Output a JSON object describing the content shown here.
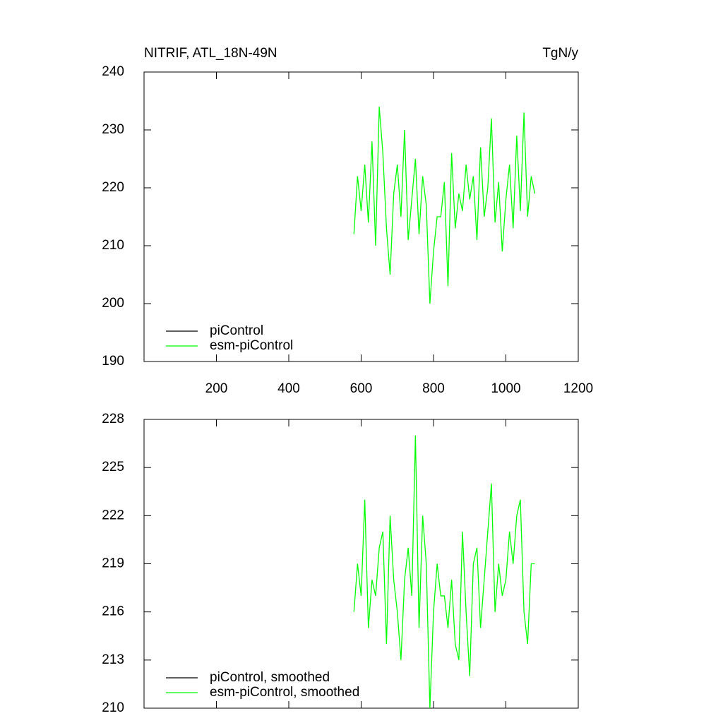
{
  "chart_data": [
    {
      "type": "line",
      "title": "NITRIF, ATL_18N-49N",
      "units": "TgN/y",
      "x": [
        580,
        590,
        600,
        610,
        620,
        630,
        640,
        650,
        660,
        670,
        680,
        690,
        700,
        710,
        720,
        730,
        740,
        750,
        760,
        770,
        780,
        790,
        800,
        810,
        820,
        830,
        840,
        850,
        860,
        870,
        880,
        890,
        900,
        910,
        920,
        930,
        940,
        950,
        960,
        970,
        980,
        990,
        1000,
        1010,
        1020,
        1030,
        1040,
        1050,
        1060,
        1070,
        1080
      ],
      "series": [
        {
          "name": "piControl",
          "color": "#000000",
          "values": [
            null,
            null,
            null,
            null,
            null,
            null,
            null,
            null,
            null,
            null,
            null,
            null,
            null,
            null,
            null,
            null,
            null,
            null,
            null,
            null,
            null,
            null,
            null,
            null,
            null,
            null,
            null,
            null,
            null,
            null,
            null,
            null,
            null,
            null,
            null,
            null,
            null,
            null,
            null,
            null,
            null,
            null,
            null,
            null,
            null,
            null,
            null,
            null,
            null,
            null,
            null
          ]
        },
        {
          "name": "esm-piControl",
          "color": "#00ff00",
          "values": [
            212,
            222,
            216,
            224,
            214,
            228,
            210,
            234,
            226,
            213,
            205,
            219,
            224,
            215,
            230,
            211,
            218,
            225,
            212,
            222,
            217,
            200,
            209,
            215,
            215,
            221,
            203,
            226,
            213,
            219,
            216,
            224,
            218,
            222,
            211,
            227,
            215,
            220,
            232,
            214,
            221,
            209,
            218,
            224,
            213,
            229,
            216,
            233,
            215,
            222,
            219
          ]
        }
      ],
      "xlim": [
        0,
        1200
      ],
      "xticks": [
        200,
        400,
        600,
        800,
        1000,
        1200
      ],
      "xtick_labels": true,
      "ylim": [
        190,
        240
      ],
      "yticks": [
        190,
        200,
        210,
        220,
        230,
        240
      ],
      "legend": "lower left"
    },
    {
      "type": "line",
      "x": [
        580,
        590,
        600,
        610,
        620,
        630,
        640,
        650,
        660,
        670,
        680,
        690,
        700,
        710,
        720,
        730,
        740,
        750,
        760,
        770,
        780,
        790,
        800,
        810,
        820,
        830,
        840,
        850,
        860,
        870,
        880,
        890,
        900,
        910,
        920,
        930,
        940,
        950,
        960,
        970,
        980,
        990,
        1000,
        1010,
        1020,
        1030,
        1040,
        1050,
        1060,
        1070,
        1080
      ],
      "series": [
        {
          "name": "piControl, smoothed",
          "color": "#000000",
          "values": [
            null,
            null,
            null,
            null,
            null,
            null,
            null,
            null,
            null,
            null,
            null,
            null,
            null,
            null,
            null,
            null,
            null,
            null,
            null,
            null,
            null,
            null,
            null,
            null,
            null,
            null,
            null,
            null,
            null,
            null,
            null,
            null,
            null,
            null,
            null,
            null,
            null,
            null,
            null,
            null,
            null,
            null,
            null,
            null,
            null,
            null,
            null,
            null,
            null,
            null,
            null
          ]
        },
        {
          "name": "esm-piControl, smoothed",
          "color": "#00ff00",
          "values": [
            216,
            219,
            217,
            223,
            215,
            218,
            217,
            220,
            221,
            214,
            222,
            218,
            216,
            213,
            218,
            220,
            217,
            227,
            215,
            222,
            219,
            210,
            216,
            219,
            217,
            217,
            215,
            218,
            214,
            213,
            221,
            216,
            212,
            219,
            220,
            215,
            218,
            221,
            224,
            216,
            219,
            217,
            218,
            221,
            219,
            222,
            223,
            216,
            214,
            219,
            219
          ]
        }
      ],
      "xlim": [
        0,
        1200
      ],
      "xticks": [
        200,
        400,
        600,
        800,
        1000,
        1200
      ],
      "xtick_labels": false,
      "ylim": [
        210,
        228
      ],
      "yticks": [
        210,
        213,
        216,
        219,
        222,
        225,
        228
      ],
      "legend": "lower left"
    }
  ]
}
